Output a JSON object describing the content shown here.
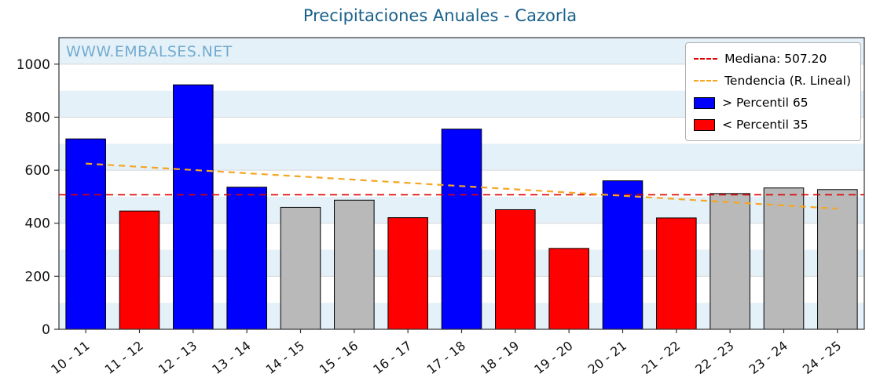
{
  "watermark": "WWW.EMBALSES.NET",
  "legend": {
    "median": "Mediana: 507.20",
    "trend": "Tendencia (R. Lineal)",
    "p65": "> Percentil 65",
    "p35": "< Percentil 35"
  },
  "chart_data": {
    "type": "bar",
    "title": "Precipitaciones Anuales - Cazorla",
    "xlabel": "",
    "ylabel": "",
    "categories": [
      "10 - 11",
      "11 - 12",
      "12 - 13",
      "13 - 14",
      "14 - 15",
      "15 - 16",
      "16 - 17",
      "17 - 18",
      "18 - 19",
      "19 - 20",
      "20 - 21",
      "21 - 22",
      "22 - 23",
      "23 - 24",
      "24 - 25"
    ],
    "values": [
      718,
      446,
      922,
      536,
      460,
      487,
      421,
      755,
      451,
      305,
      560,
      420,
      512,
      533,
      527
    ],
    "bar_colors": [
      "blue",
      "red",
      "blue",
      "blue",
      "gray",
      "gray",
      "red",
      "blue",
      "red",
      "red",
      "blue",
      "red",
      "gray",
      "gray",
      "gray"
    ],
    "median": 507.2,
    "trend": {
      "start": 625,
      "end": 455
    },
    "ylim": [
      0,
      1100
    ],
    "yticks": [
      0,
      200,
      400,
      600,
      800,
      1000
    ],
    "grid": true,
    "legend_position": "upper right",
    "colors": {
      "blue": "#0000ff",
      "red": "#ff0000",
      "gray": "#b9b9b9",
      "median": "#dd0000",
      "trend": "#f5a623",
      "band": "#e4f1f9",
      "grid": "#d6d6d6",
      "title": "#19618b",
      "watermark": "#74abce"
    }
  }
}
